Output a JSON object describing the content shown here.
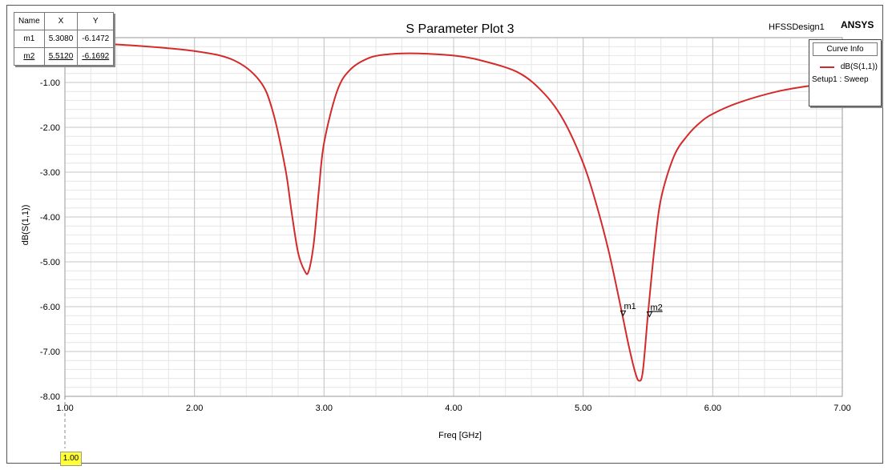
{
  "header": {
    "title": "S Parameter Plot 3",
    "design_name": "HFSSDesign1",
    "brand": "ANSYS"
  },
  "marker_table": {
    "headers": [
      "Name",
      "X",
      "Y"
    ],
    "rows": [
      {
        "name": "m1",
        "x": "5.3080",
        "y": "-6.1472"
      },
      {
        "name": "m2",
        "x": "5.5120",
        "y": "-6.1692"
      }
    ]
  },
  "curve_info": {
    "title": "Curve Info",
    "entry": "dB(S(1,1))",
    "setup": "Setup1 : Sweep",
    "color": "#d42a2a"
  },
  "cursor": {
    "label": "1.00"
  },
  "chart_data": {
    "type": "line",
    "title": "S Parameter Plot 3",
    "xlabel": "Freq [GHz]",
    "ylabel": "dB(S(1,1))",
    "xlim": [
      1.0,
      7.0
    ],
    "ylim": [
      -8.0,
      0.0
    ],
    "x_ticks": [
      "1.00",
      "2.00",
      "3.00",
      "4.00",
      "5.00",
      "6.00",
      "7.00"
    ],
    "y_ticks": [
      "-1.00",
      "-2.00",
      "-3.00",
      "-4.00",
      "-5.00",
      "-6.00",
      "-7.00",
      "-8.00"
    ],
    "grid": true,
    "series": [
      {
        "name": "dB(S(1,1))",
        "color": "#d42a2a",
        "x": [
          1.0,
          1.5,
          2.0,
          2.3,
          2.5,
          2.6,
          2.7,
          2.75,
          2.8,
          2.85,
          2.88,
          2.92,
          2.96,
          3.0,
          3.1,
          3.2,
          3.35,
          3.5,
          3.65,
          3.8,
          4.0,
          4.2,
          4.5,
          4.7,
          4.85,
          5.0,
          5.1,
          5.2,
          5.3,
          5.35,
          5.4,
          5.43,
          5.46,
          5.5,
          5.55,
          5.6,
          5.7,
          5.8,
          5.9,
          6.0,
          6.2,
          6.5,
          6.8,
          7.0
        ],
        "y": [
          -0.1,
          -0.17,
          -0.3,
          -0.5,
          -0.95,
          -1.6,
          -2.9,
          -3.9,
          -4.8,
          -5.2,
          -5.22,
          -4.6,
          -3.4,
          -2.35,
          -1.2,
          -0.72,
          -0.45,
          -0.37,
          -0.35,
          -0.36,
          -0.4,
          -0.5,
          -0.78,
          -1.25,
          -1.85,
          -2.8,
          -3.7,
          -4.8,
          -6.15,
          -6.85,
          -7.45,
          -7.65,
          -7.45,
          -6.17,
          -4.7,
          -3.6,
          -2.65,
          -2.2,
          -1.9,
          -1.7,
          -1.45,
          -1.2,
          -1.05,
          -0.95
        ]
      }
    ],
    "markers": [
      {
        "name": "m1",
        "x": 5.308,
        "y": -6.1472
      },
      {
        "name": "m2",
        "x": 5.512,
        "y": -6.1692
      }
    ]
  }
}
